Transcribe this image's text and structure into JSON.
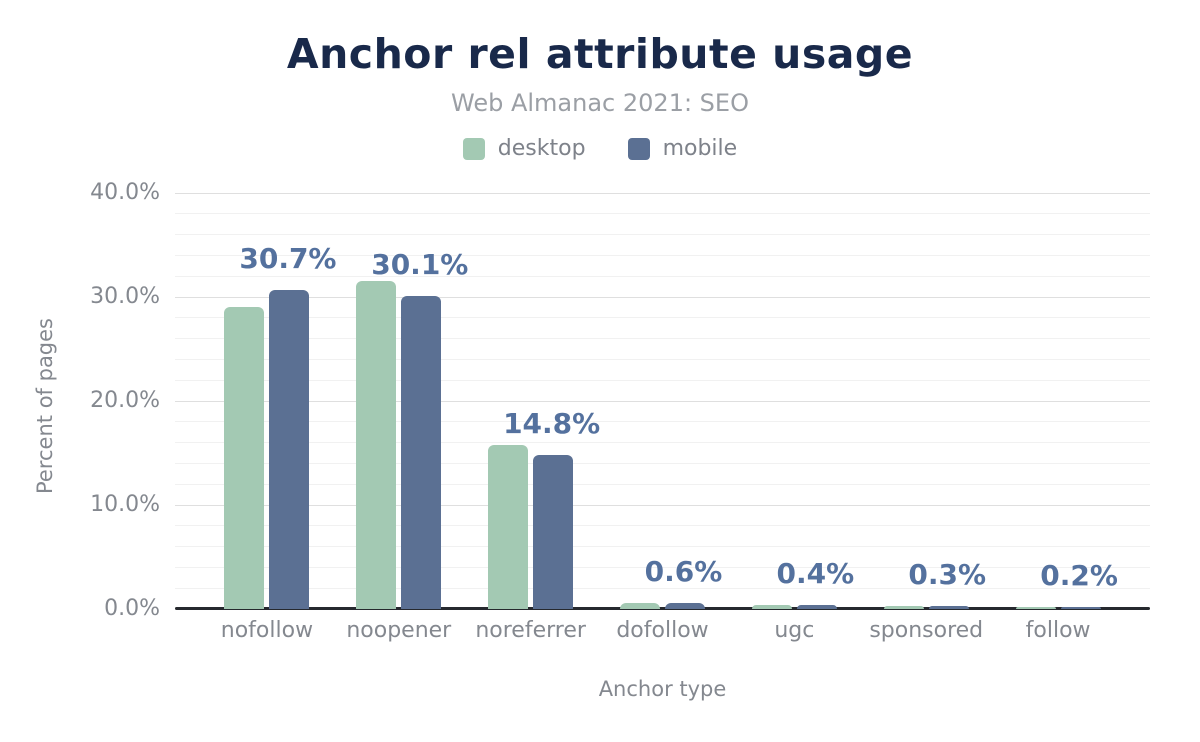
{
  "title": "Anchor rel attribute usage",
  "subtitle": "Web Almanac 2021: SEO",
  "legend": [
    {
      "label": "desktop",
      "color": "#a3c9b3"
    },
    {
      "label": "mobile",
      "color": "#5b7093"
    }
  ],
  "colors": {
    "title": "#19294a",
    "subtitle": "#9b9fa5",
    "axis_text": "#84888f",
    "value_label": "#54719e",
    "desktop_bar": "#a3c9b3",
    "mobile_bar": "#5b7093",
    "axis_line": "#26292e"
  },
  "chart_data": {
    "type": "bar",
    "title": "Anchor rel attribute usage",
    "subtitle": "Web Almanac 2021: SEO",
    "xlabel": "Anchor type",
    "ylabel": "Percent of pages",
    "categories": [
      "nofollow",
      "noopener",
      "noreferrer",
      "dofollow",
      "ugc",
      "sponsored",
      "follow"
    ],
    "series": [
      {
        "name": "desktop",
        "color": "#a3c9b3",
        "values": [
          29.0,
          31.5,
          15.8,
          0.6,
          0.4,
          0.3,
          0.2
        ]
      },
      {
        "name": "mobile",
        "color": "#5b7093",
        "values": [
          30.7,
          30.1,
          14.8,
          0.6,
          0.4,
          0.3,
          0.2
        ]
      }
    ],
    "bar_labels": {
      "series": "mobile",
      "texts": [
        "30.7%",
        "30.1%",
        "14.8%",
        "0.6%",
        "0.4%",
        "0.3%",
        "0.2%"
      ]
    },
    "y_ticks": [
      {
        "value": 0,
        "label": "0.0%"
      },
      {
        "value": 10,
        "label": "10.0%"
      },
      {
        "value": 20,
        "label": "20.0%"
      },
      {
        "value": 30,
        "label": "30.0%"
      },
      {
        "value": 40,
        "label": "40.0%"
      }
    ],
    "ylim": [
      0,
      40
    ],
    "minor_grid_step": 2,
    "grid": true,
    "legend_position": "top"
  }
}
